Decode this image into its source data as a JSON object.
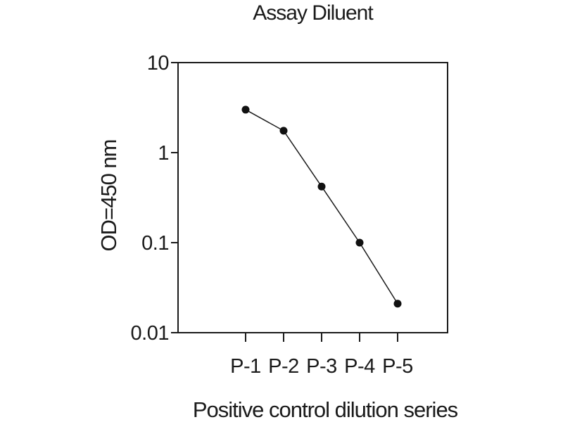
{
  "figure": {
    "background": "#ffffff",
    "text_color": "#1a1a1a"
  },
  "chart_data": {
    "type": "line",
    "title": "Assay Diluent",
    "xlabel": "Positive control dilution series",
    "ylabel": "OD=450 nm",
    "categories": [
      "P-1",
      "P-2",
      "P-3",
      "P-4",
      "P-5"
    ],
    "series": [
      {
        "name": "Positive control dilution series",
        "values": [
          3.0,
          1.75,
          0.42,
          0.1,
          0.021
        ]
      }
    ],
    "y_scale": "log",
    "ylim": [
      0.01,
      10
    ],
    "y_ticks": [
      10,
      1,
      0.1,
      0.01
    ],
    "y_tick_labels": [
      "10",
      "1",
      "0.1",
      "0.01"
    ],
    "grid": false,
    "legend_position": "none",
    "marker": "filled-circle",
    "line_color": "#1a1a1a",
    "marker_color": "#111111",
    "frame": "full-box"
  }
}
